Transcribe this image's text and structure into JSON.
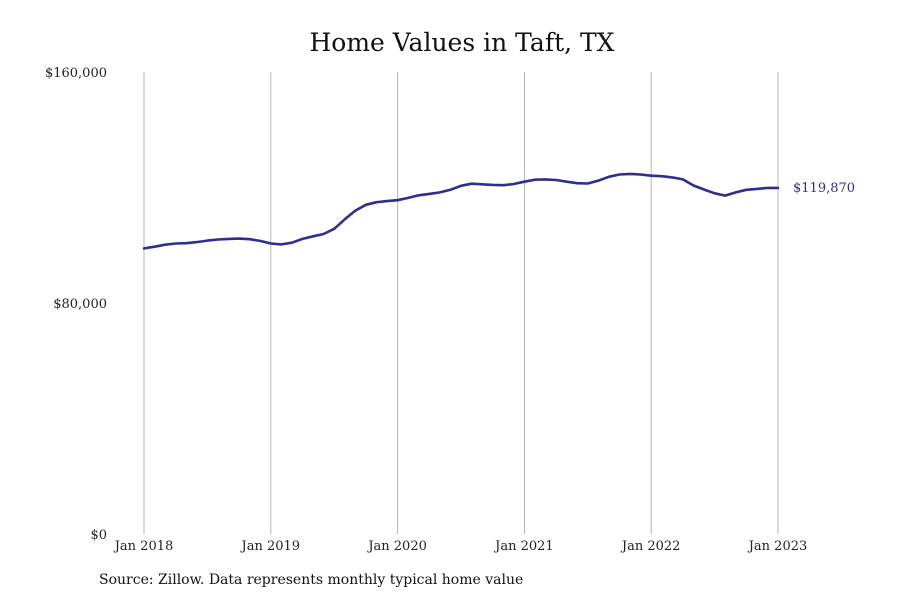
{
  "chart_data": {
    "type": "line",
    "title": "Home Values in Taft, TX",
    "xlabel": "",
    "ylabel": "",
    "source": "Source: Zillow. Data represents monthly typical home value",
    "ylim": [
      0,
      160000
    ],
    "y_ticks": [
      {
        "value": 0,
        "label": "$0"
      },
      {
        "value": 80000,
        "label": "$80,000"
      },
      {
        "value": 160000,
        "label": "$160,000"
      }
    ],
    "x_ticks": [
      {
        "value": "2018-01",
        "label": "Jan 2018"
      },
      {
        "value": "2019-01",
        "label": "Jan 2019"
      },
      {
        "value": "2020-01",
        "label": "Jan 2020"
      },
      {
        "value": "2021-01",
        "label": "Jan 2021"
      },
      {
        "value": "2022-01",
        "label": "Jan 2022"
      },
      {
        "value": "2023-01",
        "label": "Jan 2023"
      }
    ],
    "grid": "vertical",
    "line_color": "#2e2e8f",
    "end_label": "$119,870",
    "x": [
      "2018-01",
      "2018-02",
      "2018-03",
      "2018-04",
      "2018-05",
      "2018-06",
      "2018-07",
      "2018-08",
      "2018-09",
      "2018-10",
      "2018-11",
      "2018-12",
      "2019-01",
      "2019-02",
      "2019-03",
      "2019-04",
      "2019-05",
      "2019-06",
      "2019-07",
      "2019-08",
      "2019-09",
      "2019-10",
      "2019-11",
      "2019-12",
      "2020-01",
      "2020-02",
      "2020-03",
      "2020-04",
      "2020-05",
      "2020-06",
      "2020-07",
      "2020-08",
      "2020-09",
      "2020-10",
      "2020-11",
      "2020-12",
      "2021-01",
      "2021-02",
      "2021-03",
      "2021-04",
      "2021-05",
      "2021-06",
      "2021-07",
      "2021-08",
      "2021-09",
      "2021-10",
      "2021-11",
      "2021-12",
      "2022-01",
      "2022-02",
      "2022-03",
      "2022-04",
      "2022-05",
      "2022-06",
      "2022-07",
      "2022-08",
      "2022-09",
      "2022-10",
      "2022-11",
      "2022-12",
      "2023-01"
    ],
    "values": [
      98900,
      99500,
      100200,
      100600,
      100700,
      101100,
      101600,
      102000,
      102200,
      102300,
      102100,
      101500,
      100600,
      100300,
      100900,
      102200,
      103100,
      103900,
      105700,
      109000,
      112000,
      114000,
      114900,
      115300,
      115600,
      116400,
      117300,
      117800,
      118300,
      119200,
      120600,
      121300,
      121100,
      120900,
      120800,
      121200,
      122000,
      122700,
      122800,
      122600,
      122000,
      121500,
      121400,
      122400,
      123700,
      124500,
      124700,
      124500,
      124100,
      123900,
      123500,
      122800,
      120700,
      119300,
      118000,
      117200,
      118300,
      119200,
      119500,
      119870,
      119870
    ]
  }
}
